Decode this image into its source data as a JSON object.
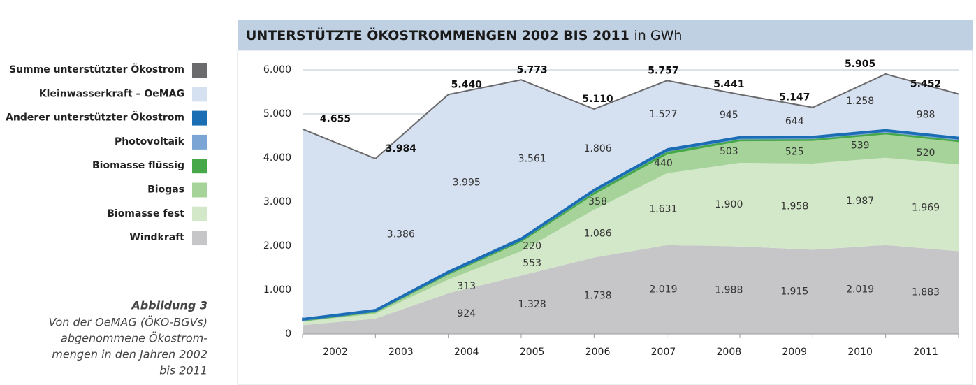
{
  "chart_data": {
    "type": "stacked_area",
    "title": "UNTERSTÜTZTE ÖKOSTROMMENGEN 2002 BIS 2011",
    "unit": "in GWh",
    "categories": [
      "2002",
      "2003",
      "2004",
      "2005",
      "2006",
      "2007",
      "2008",
      "2009",
      "2010",
      "2011"
    ],
    "ylim": [
      0,
      6000
    ],
    "yticks": [
      0,
      {
        "value": 1000,
        "label": "1.000"
      },
      {
        "value": 2000,
        "label": "2.000"
      },
      {
        "value": 3000,
        "label": "3.000"
      },
      {
        "value": 4000,
        "label": "4.000"
      },
      {
        "value": 5000,
        "label": "5.000"
      },
      {
        "value": 6000,
        "label": "6.000"
      }
    ],
    "grid": true,
    "legend": "left",
    "series": [
      {
        "name": "Windkraft",
        "color": "#c6c6c8",
        "values": [
          200,
          350,
          924,
          1328,
          1738,
          2019,
          1988,
          1915,
          2019,
          1883
        ],
        "value_labels": [
          null,
          null,
          "924",
          "1.328",
          "1.738",
          "2.019",
          "1.988",
          "1.915",
          "2.019",
          "1.883"
        ]
      },
      {
        "name": "Biomasse fest",
        "color": "#d3e8c9",
        "values": [
          80,
          110,
          313,
          553,
          1086,
          1631,
          1900,
          1958,
          1987,
          1969
        ],
        "value_labels": [
          null,
          null,
          "313",
          "553",
          "1.086",
          "1.631",
          "1.900",
          "1.958",
          "1.987",
          "1.969"
        ]
      },
      {
        "name": "Biogas",
        "color": "#a6d39a",
        "values": [
          20,
          40,
          120,
          220,
          358,
          440,
          503,
          525,
          539,
          520
        ],
        "value_labels": [
          null,
          null,
          null,
          "220",
          "358",
          "440",
          "503",
          "525",
          "539",
          "520"
        ]
      },
      {
        "name": "Biomasse flüssig",
        "color": "#46a849",
        "values": [
          10,
          10,
          20,
          30,
          50,
          60,
          40,
          40,
          40,
          40
        ]
      },
      {
        "name": "Photovoltaik",
        "color": "#7aa5d5",
        "values": [
          5,
          5,
          5,
          5,
          10,
          10,
          15,
          15,
          20,
          20
        ]
      },
      {
        "name": "Anderer unterstützter Ökostrom",
        "color": "#1b6db4",
        "values": [
          50,
          55,
          60,
          60,
          60,
          60,
          50,
          50,
          50,
          50
        ]
      },
      {
        "name": "Kleinwasserkraft – OeMAG",
        "color": "#d5e0f0",
        "values": [
          4290,
          3386,
          3995,
          3561,
          1806,
          1527,
          945,
          644,
          1258,
          988
        ],
        "value_labels": [
          null,
          "3.386",
          "3.995",
          "3.561",
          "1.806",
          "1.527",
          "945",
          "644",
          "1.258",
          "988"
        ]
      }
    ],
    "total": {
      "name": "Summe unterstützter Ökostrom",
      "color": "#6b6b6d",
      "values": [
        4655,
        3984,
        5440,
        5773,
        5110,
        5757,
        5441,
        5147,
        5905,
        5452
      ],
      "value_labels": [
        "4.655",
        "3.984",
        "5.440",
        "5.773",
        "5.110",
        "5.757",
        "5.441",
        "5.147",
        "5.905",
        "5.452"
      ]
    }
  },
  "caption": {
    "label": "Abbildung 3",
    "lines": [
      "Von der OeMAG (ÖKO-BGVs)",
      "abgenommene Ökostrom-",
      "mengen in den Jahren 2002",
      "bis 2011"
    ]
  }
}
